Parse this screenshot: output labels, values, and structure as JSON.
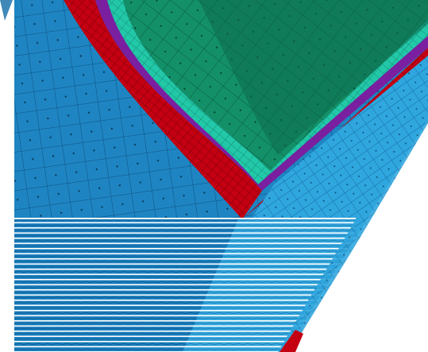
{
  "viewport": {
    "hud_lines": [
      "",
      ""
    ]
  },
  "colors": {
    "outer_ply": "#1e85c2",
    "outer_ply_light": "#2fa0da",
    "red_band": "#c40012",
    "purple_band": "#7a1fa0",
    "teal_band": "#1fc4a8",
    "inner_core": "#139067",
    "inner_core_dark": "#0c6a4c",
    "stripe_dark": "#0f6aa6",
    "background": "#ffffff"
  },
  "icons": {
    "corner": "triad-icon"
  }
}
